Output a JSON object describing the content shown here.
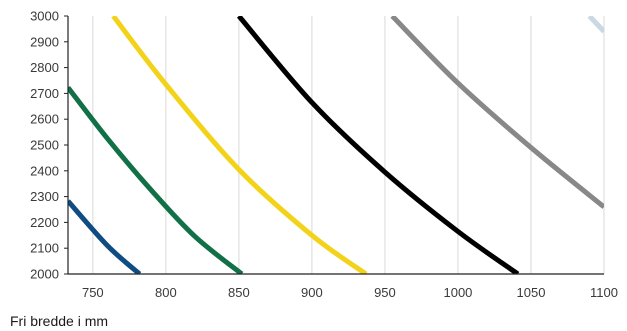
{
  "chart_data": {
    "type": "line",
    "title": "",
    "xlabel": "Fri bredde i mm",
    "ylabel": "",
    "xlim": [
      733,
      1100
    ],
    "ylim": [
      2000,
      3000
    ],
    "x_ticks": [
      750,
      800,
      850,
      900,
      950,
      1000,
      1050,
      1100
    ],
    "x_tick_labels": [
      "750",
      "800",
      "850",
      "900",
      "950",
      "1000",
      "1050",
      "1100"
    ],
    "y_ticks": [
      2000,
      2100,
      2200,
      2300,
      2400,
      2500,
      2600,
      2700,
      2800,
      2900,
      3000
    ],
    "y_tick_labels": [
      "2000",
      "2100",
      "2200",
      "2300",
      "2400",
      "2500",
      "2600",
      "2700",
      "2800",
      "2900",
      "3000"
    ],
    "grid": "vertical",
    "legend": "none",
    "series": [
      {
        "color": "#0f4c81",
        "x": [
          733,
          760,
          782
        ],
        "y": [
          2283,
          2110,
          2000
        ]
      },
      {
        "color": "#127047",
        "x": [
          733,
          760,
          790,
          820,
          852
        ],
        "y": [
          2723,
          2525,
          2325,
          2145,
          2000
        ]
      },
      {
        "color": "#f3d31a",
        "x": [
          764,
          800,
          850,
          900,
          937
        ],
        "y": [
          3000,
          2735,
          2405,
          2150,
          2000
        ]
      },
      {
        "color": "#000000",
        "x": [
          850,
          900,
          950,
          1000,
          1041
        ],
        "y": [
          3000,
          2665,
          2395,
          2165,
          2000
        ]
      },
      {
        "color": "#888888",
        "x": [
          955,
          1000,
          1050,
          1100
        ],
        "y": [
          3000,
          2740,
          2490,
          2260
        ]
      },
      {
        "color": "#c9d8e2",
        "x": [
          1090,
          1100
        ],
        "y": [
          3000,
          2940
        ]
      }
    ]
  }
}
